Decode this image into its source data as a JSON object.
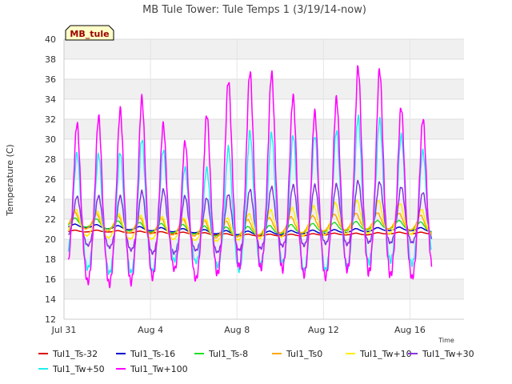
{
  "chart_data": {
    "type": "line",
    "title": "MB Tule Tower: Tule Temps 1 (3/19/14-now)",
    "station_label": "MB_tule",
    "xlabel": "Time",
    "ylabel": "Temperature (C)",
    "ylim": [
      12,
      40
    ],
    "yticks": [
      12,
      14,
      16,
      18,
      20,
      22,
      24,
      26,
      28,
      30,
      32,
      34,
      36,
      38,
      40
    ],
    "xlim": [
      0,
      18.5
    ],
    "xticks": [
      {
        "day": 0,
        "label": "Jul 31"
      },
      {
        "day": 4,
        "label": "Aug 4"
      },
      {
        "day": 8,
        "label": "Aug 8"
      },
      {
        "day": 12,
        "label": "Aug 12"
      },
      {
        "day": 16,
        "label": "Aug 16"
      }
    ],
    "grid": true,
    "legend_position": "bottom",
    "day_x": [
      0.2,
      1,
      2,
      3,
      4,
      5,
      6,
      7,
      8,
      9,
      10,
      11,
      12,
      13,
      14,
      15,
      16,
      17
    ],
    "series": [
      {
        "name": "Tul1_Ts-32",
        "color": "#dd0000",
        "mean": [
          20.8,
          20.8,
          20.8,
          20.7,
          20.7,
          20.6,
          20.6,
          20.5,
          20.4,
          20.4,
          20.4,
          20.4,
          20.5,
          20.5,
          20.5,
          20.6,
          20.6,
          20.6
        ],
        "amp": [
          0.1,
          0.1,
          0.1,
          0.1,
          0.1,
          0.1,
          0.1,
          0.1,
          0.1,
          0.1,
          0.1,
          0.1,
          0.1,
          0.1,
          0.1,
          0.1,
          0.1,
          0.1
        ],
        "phase": 0.5
      },
      {
        "name": "Tul1_Ts-16",
        "color": "#0000cc",
        "mean": [
          21.3,
          21.3,
          21.2,
          21.1,
          21.0,
          20.9,
          20.8,
          20.7,
          20.6,
          20.6,
          20.6,
          20.7,
          20.7,
          20.8,
          20.9,
          21.0,
          21.0,
          20.9
        ],
        "amp": [
          0.2,
          0.2,
          0.2,
          0.2,
          0.2,
          0.2,
          0.2,
          0.2,
          0.2,
          0.2,
          0.2,
          0.2,
          0.2,
          0.2,
          0.2,
          0.2,
          0.2,
          0.2
        ],
        "phase": 0.5
      },
      {
        "name": "Tul1_Ts-8",
        "color": "#22dd22",
        "mean": [
          21.6,
          21.6,
          21.4,
          21.2,
          21.1,
          21.0,
          20.9,
          20.7,
          20.7,
          20.8,
          20.9,
          21.0,
          21.1,
          21.2,
          21.3,
          21.4,
          21.3,
          21.1
        ],
        "amp": [
          0.5,
          0.5,
          0.5,
          0.5,
          0.5,
          0.5,
          0.5,
          0.5,
          0.5,
          0.5,
          0.5,
          0.5,
          0.5,
          0.5,
          0.5,
          0.5,
          0.5,
          0.5
        ],
        "phase": 0.5
      },
      {
        "name": "Tul1_Ts0",
        "color": "#ffaa00",
        "mean": [
          21.8,
          21.7,
          21.5,
          21.3,
          21.2,
          21.1,
          21.0,
          20.8,
          20.9,
          21.1,
          21.3,
          21.3,
          21.5,
          21.6,
          21.7,
          21.7,
          21.6,
          21.3
        ],
        "amp": [
          0.9,
          0.9,
          0.9,
          0.9,
          0.9,
          0.9,
          0.9,
          0.9,
          0.9,
          0.9,
          0.9,
          0.9,
          0.9,
          0.9,
          0.9,
          0.9,
          0.9,
          0.9
        ],
        "phase": 0.5
      },
      {
        "name": "Tul1_Tw+10",
        "color": "#ffee00",
        "mean": [
          21.6,
          21.4,
          21.2,
          21.0,
          21.0,
          20.9,
          20.8,
          20.7,
          20.9,
          21.2,
          21.4,
          21.5,
          21.7,
          21.9,
          22.0,
          21.9,
          21.7,
          21.3
        ],
        "amp": [
          1.4,
          1.4,
          1.4,
          1.3,
          1.3,
          1.2,
          1.2,
          1.2,
          1.3,
          1.5,
          1.6,
          1.6,
          1.7,
          1.8,
          1.9,
          1.8,
          1.6,
          1.3
        ],
        "phase": 0.55
      },
      {
        "name": "Tul1_Tw+30",
        "color": "#8833dd",
        "mean": [
          21.8,
          21.5,
          21.3,
          21.2,
          21.3,
          21.2,
          21.0,
          21.0,
          21.3,
          21.6,
          21.8,
          21.9,
          22.0,
          22.0,
          22.3,
          22.1,
          21.9,
          21.7
        ],
        "amp": [
          2.2,
          2.8,
          2.8,
          3.0,
          3.6,
          3.5,
          2.8,
          3.1,
          3.2,
          3.4,
          3.3,
          3.4,
          3.2,
          3.4,
          3.5,
          3.3,
          3.0,
          2.6
        ],
        "phase": 0.6
      },
      {
        "name": "Tul1_Tw+50",
        "color": "#22eeee",
        "mean": [
          22.5,
          22.0,
          21.5,
          21.8,
          22.5,
          22.0,
          21.5,
          21.5,
          22.5,
          23.0,
          23.0,
          22.5,
          22.5,
          23.0,
          24.0,
          23.5,
          22.5,
          22.5
        ],
        "amp": [
          5.5,
          6.5,
          6.5,
          6.8,
          7.8,
          5.5,
          5.0,
          5.5,
          7.5,
          7.5,
          7.0,
          7.5,
          7.5,
          7.8,
          8.5,
          7.5,
          6.8,
          5.5
        ],
        "phase": 0.6
      },
      {
        "name": "Tul1_Tw+100",
        "color": "#ff00ff",
        "mean": [
          22.8,
          22.5,
          22.5,
          23.0,
          23.8,
          22.2,
          21.8,
          23.8,
          25.5,
          25.2,
          25.2,
          23.2,
          23.0,
          24.5,
          25.8,
          24.5,
          22.5,
          23.0
        ],
        "amp": [
          8.0,
          9.0,
          9.4,
          9.8,
          10.3,
          6.8,
          7.8,
          9.8,
          11.0,
          10.8,
          10.9,
          9.0,
          9.2,
          10.0,
          12.2,
          10.8,
          8.5,
          9.0
        ],
        "phase": 0.6
      }
    ]
  }
}
